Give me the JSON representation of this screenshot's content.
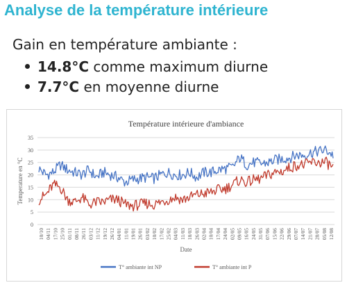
{
  "slide": {
    "heading": "Analyse de la température intérieure",
    "subtitle": "Gain en température ambiante :",
    "bullets": [
      {
        "value": "14.8°C",
        "text": " comme maximum diurne"
      },
      {
        "value": "7.7°C",
        "text": " en moyenne diurne"
      }
    ]
  },
  "chart_data": {
    "type": "line",
    "title": "Température intérieure d'ambiance",
    "xlabel": "Date",
    "ylabel": "Temperature en °C",
    "ylim": [
      0,
      35
    ],
    "yticks": [
      0,
      5,
      10,
      15,
      20,
      25,
      30,
      35
    ],
    "grid": true,
    "legend_position": "bottom",
    "x": [
      "10/10",
      "17/10",
      "25/10",
      "03/11",
      "10/11",
      "17/11",
      "25/11",
      "03/12",
      "11/12",
      "19/12",
      "26/12",
      "04/01",
      "11/01",
      "19/01",
      "26/01",
      "03/02",
      "10/02",
      "17/02",
      "25/02",
      "04/03",
      "11/03",
      "18/03",
      "26/03",
      "02/04",
      "10/04",
      "17/04",
      "24/04",
      "02/05",
      "09/05",
      "16/05",
      "24/05",
      "31/05",
      "07/06",
      "15/06",
      "22/06",
      "29/06",
      "07/07",
      "14/07",
      "21/07",
      "28/07",
      "05/08",
      "12/08"
    ],
    "xtick_labels": [
      "10/10",
      "04/11",
      "17/10",
      "25/10",
      "01/11",
      "08/11",
      "26/11",
      "03/12",
      "11/12",
      "19/12",
      "26/12",
      "04/01",
      "11/01",
      "19/01",
      "26/01",
      "03/02",
      "10/02",
      "17/02",
      "25/02",
      "04/03",
      "11/03",
      "18/03",
      "26/03",
      "02/04",
      "10/04",
      "17/04",
      "24/04",
      "02/05",
      "09/05",
      "16/05",
      "24/05",
      "31/05",
      "07/06",
      "15/06",
      "22/06",
      "29/06",
      "07/07",
      "14/07",
      "21/07",
      "28/07",
      "05/08",
      "12/08"
    ],
    "series": [
      {
        "name": "T° ambiante int NP",
        "color": "#4472c4",
        "values": [
          22.5,
          20,
          21,
          24,
          22,
          21,
          20,
          22,
          19,
          21,
          20,
          19,
          17,
          18,
          18.5,
          19,
          18.5,
          20,
          21,
          20,
          20,
          21,
          19,
          21,
          21,
          22,
          22.5,
          23,
          27,
          24,
          25,
          24.5,
          25,
          26,
          26.5,
          27,
          28,
          28,
          29,
          29.5,
          30,
          28
        ]
      },
      {
        "name": "T° ambiante int P",
        "color": "#c0392b",
        "values": [
          10,
          12,
          16,
          15,
          10,
          9,
          11,
          8,
          9,
          9,
          10,
          10,
          8,
          7.5,
          8,
          8.5,
          8,
          9,
          10,
          11,
          10,
          11,
          12,
          12.5,
          13,
          14,
          14.5,
          16,
          18,
          17,
          18,
          18.5,
          20,
          21,
          21.5,
          23,
          24,
          24,
          25,
          25,
          25,
          23
        ]
      }
    ]
  }
}
